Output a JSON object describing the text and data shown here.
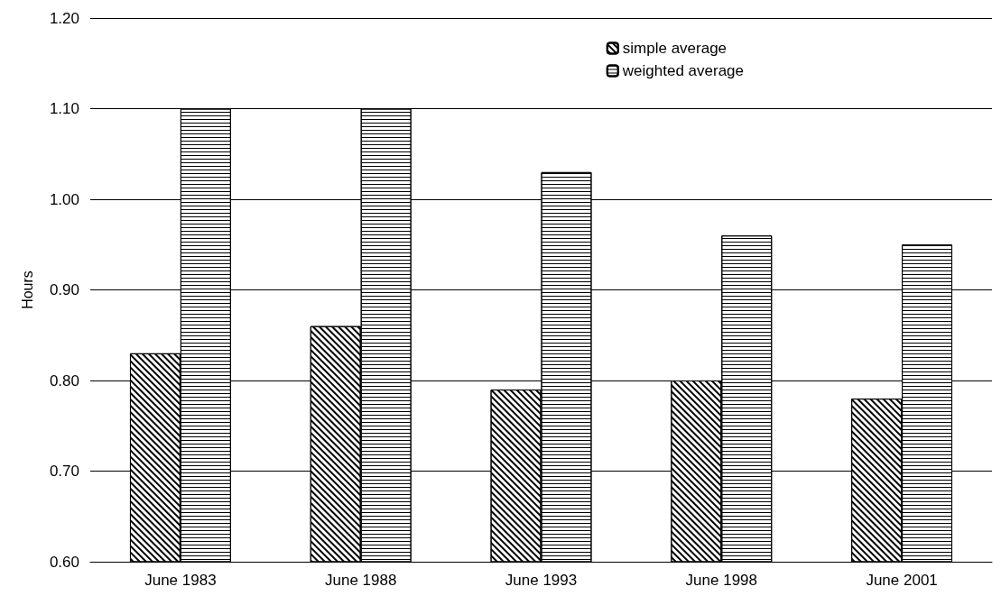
{
  "chart_data": {
    "type": "bar",
    "ylabel": "Hours",
    "categories": [
      "June 1983",
      "June 1988",
      "June 1993",
      "June 1998",
      "June 2001"
    ],
    "series": [
      {
        "name": "simple average",
        "color": "#ffffff",
        "values": [
          0.83,
          0.86,
          0.79,
          0.8,
          0.78
        ]
      },
      {
        "name": "weighted average",
        "color": "#ffffff",
        "values": [
          1.1,
          1.1,
          1.03,
          0.96,
          0.95
        ]
      }
    ],
    "ylim": [
      0.6,
      1.2
    ],
    "yticks": [
      {
        "value": 0.6,
        "label": "0.60"
      },
      {
        "value": 0.7,
        "label": "0.70"
      },
      {
        "value": 0.8,
        "label": "0.80"
      },
      {
        "value": 0.9,
        "label": "0.90"
      },
      {
        "value": 1.0,
        "label": "1.00"
      },
      {
        "value": 1.1,
        "label": "1.10"
      },
      {
        "value": 1.2,
        "label": "1.20"
      }
    ],
    "grid": "y",
    "legend": "top right"
  }
}
